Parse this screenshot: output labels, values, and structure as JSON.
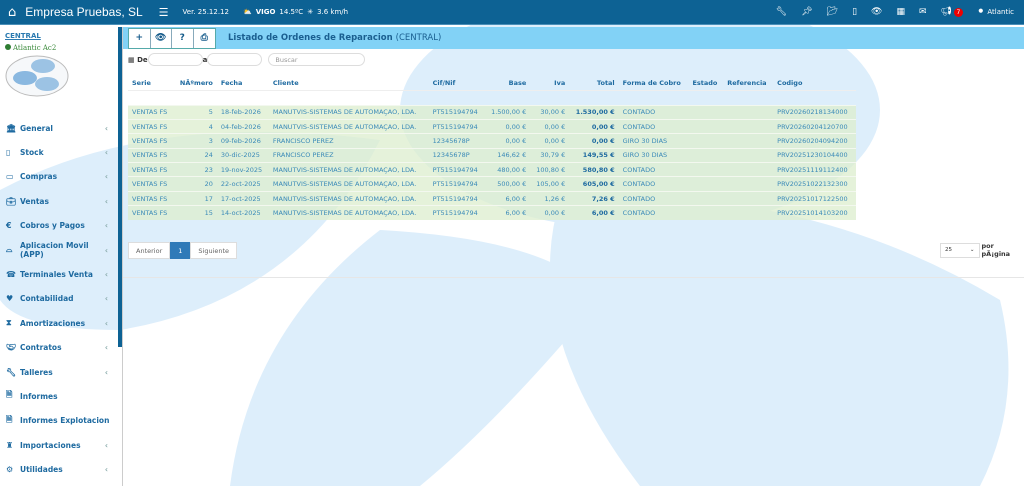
{
  "topbar": {
    "brand": "Empresa Pruebas, SL",
    "version": "Ver. 25.12.12",
    "city": "VIGO",
    "temp": "14.5ºC",
    "wind": "3.6 km/h",
    "notifications": "7",
    "user": "Atlantic"
  },
  "sidebar": {
    "branch": "CENTRAL",
    "company": "Atlantic Ac2",
    "items": [
      {
        "label": "General",
        "icon": "bank-icon",
        "arrow": true
      },
      {
        "label": "Stock",
        "icon": "tablet-icon",
        "arrow": true
      },
      {
        "label": "Compras",
        "icon": "credit-card-icon",
        "arrow": true
      },
      {
        "label": "Ventas",
        "icon": "briefcase-icon",
        "arrow": true
      },
      {
        "label": "Cobros y Pagos",
        "icon": "euro-icon",
        "arrow": true
      },
      {
        "label": "Aplicacion Movil (APP)",
        "icon": "basket-icon",
        "arrow": true
      },
      {
        "label": "Terminales Venta",
        "icon": "register-icon",
        "arrow": true
      },
      {
        "label": "Contabilidad",
        "icon": "heartbeat-icon",
        "arrow": true
      },
      {
        "label": "Amortizaciones",
        "icon": "hourglass-icon",
        "arrow": true
      },
      {
        "label": "Contratos",
        "icon": "handshake-icon",
        "arrow": true
      },
      {
        "label": "Talleres",
        "icon": "wrench-icon",
        "arrow": true
      },
      {
        "label": "Informes",
        "icon": "file-icon",
        "arrow": false
      },
      {
        "label": "Informes Explotacion",
        "icon": "file-icon",
        "arrow": false
      },
      {
        "label": "Importaciones",
        "icon": "customs-icon",
        "arrow": true
      },
      {
        "label": "Utilidades",
        "icon": "gears-icon",
        "arrow": true
      }
    ]
  },
  "panel": {
    "title": "Listado de Ordenes de Reparacion",
    "subtitle": "(CENTRAL)"
  },
  "filters": {
    "from_label": "De",
    "to_label": "a",
    "search_placeholder": "Buscar"
  },
  "table": {
    "columns": [
      "Serie",
      "NÃºmero",
      "Fecha",
      "Cliente",
      "Cif/Nif",
      "Base",
      "Iva",
      "Total",
      "Forma de Cobro",
      "Estado",
      "Referencia",
      "Codigo"
    ],
    "rows": [
      [
        "VENTAS FS",
        "5",
        "18-feb-2026",
        "MANUTVIS-SISTEMAS DE AUTOMAÇAO, LDA.",
        "PT515194794",
        "1.500,00 €",
        "30,00 €",
        "1.530,00 €",
        "CONTADO",
        "",
        "",
        "PRV20260218134000"
      ],
      [
        "VENTAS FS",
        "4",
        "04-feb-2026",
        "MANUTVIS-SISTEMAS DE AUTOMAÇAO, LDA.",
        "PT515194794",
        "0,00 €",
        "0,00 €",
        "0,00 €",
        "CONTADO",
        "",
        "",
        "PRV20260204120700"
      ],
      [
        "VENTAS FS",
        "3",
        "09-feb-2026",
        "FRANCISCO PEREZ",
        "12345678P",
        "0,00 €",
        "0,00 €",
        "0,00 €",
        "GIRO 30 DIAS",
        "",
        "",
        "PRV20260204094200"
      ],
      [
        "VENTAS FS",
        "24",
        "30-dic-2025",
        "FRANCISCO PEREZ",
        "12345678P",
        "146,62 €",
        "30,79 €",
        "149,55 €",
        "GIRO 30 DIAS",
        "",
        "",
        "PRV20251230104400"
      ],
      [
        "VENTAS FS",
        "23",
        "19-nov-2025",
        "MANUTVIS-SISTEMAS DE AUTOMAÇAO, LDA.",
        "PT515194794",
        "480,00 €",
        "100,80 €",
        "580,80 €",
        "CONTADO",
        "",
        "",
        "PRV20251119112400"
      ],
      [
        "VENTAS FS",
        "20",
        "22-oct-2025",
        "MANUTVIS-SISTEMAS DE AUTOMAÇAO, LDA.",
        "PT515194794",
        "500,00 €",
        "105,00 €",
        "605,00 €",
        "CONTADO",
        "",
        "",
        "PRV20251022132300"
      ],
      [
        "VENTAS FS",
        "17",
        "17-oct-2025",
        "MANUTVIS-SISTEMAS DE AUTOMAÇAO, LDA.",
        "PT515194794",
        "6,00 €",
        "1,26 €",
        "7,26 €",
        "CONTADO",
        "",
        "",
        "PRV20251017122500"
      ],
      [
        "VENTAS FS",
        "15",
        "14-oct-2025",
        "MANUTVIS-SISTEMAS DE AUTOMAÇAO, LDA.",
        "PT515194794",
        "6,00 €",
        "0,00 €",
        "6,00 €",
        "CONTADO",
        "",
        "",
        "PRV20251014103200"
      ]
    ]
  },
  "pagination": {
    "prev": "Anterior",
    "page": "1",
    "next": "Siguiente",
    "per_page": "25",
    "per_page_label": "por pÃ¡gina"
  }
}
